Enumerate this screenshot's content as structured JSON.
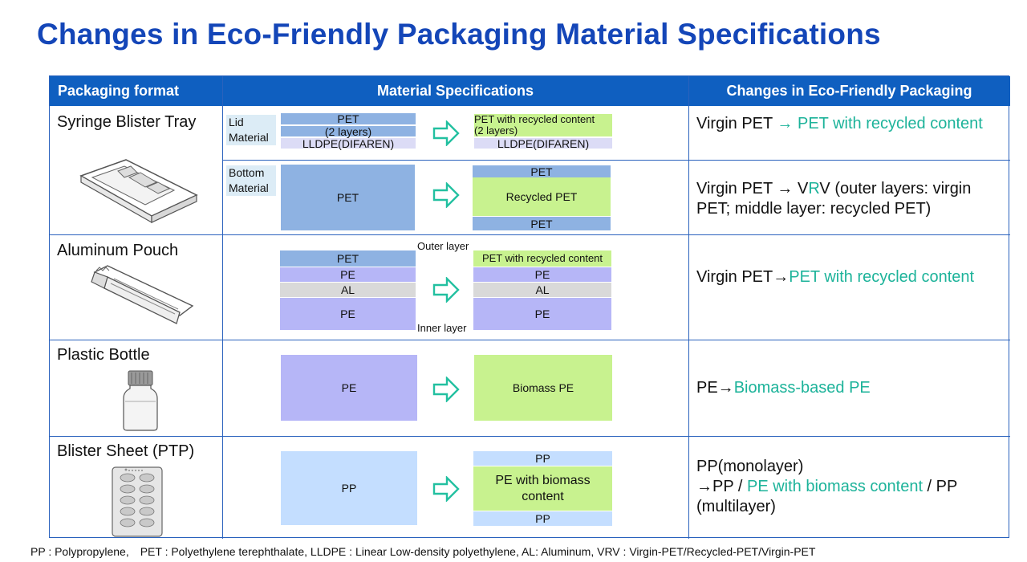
{
  "title": "Changes in Eco-Friendly Packaging Material Specifications",
  "headers": {
    "format": "Packaging format",
    "material": "Material Specifications",
    "changes": "Changes in Eco-Friendly Packaging"
  },
  "rows": {
    "syringe": {
      "format": "Syringe Blister Tray",
      "lid_label_1": "Lid",
      "lid_label_2": "Material",
      "lid_before": {
        "pet": "PET",
        "pet_sub": "(2 layers)",
        "lldpe": "LLDPE(DIFAREN)"
      },
      "lid_after": {
        "rec": "PET with recycled content",
        "rec_sub": "(2 layers)",
        "lldpe": "LLDPE(DIFAREN)"
      },
      "lid_change": {
        "before": "Virgin PET ",
        "arrow": "→ ",
        "after": "PET with recycled content"
      },
      "bottom_label_1": "Bottom",
      "bottom_label_2": "Material",
      "bottom_before": "PET",
      "bottom_after": {
        "top": "PET",
        "middle": "Recycled PET",
        "bottom": "PET"
      },
      "bottom_change": {
        "a": "Virgin PET → V",
        "b": "R",
        "c": "V (outer layers: virgin PET; middle layer: recycled PET)"
      }
    },
    "pouch": {
      "format": "Aluminum Pouch",
      "outer_label": "Outer layer",
      "inner_label": "Inner layer",
      "before": [
        "PET",
        "PE",
        "AL",
        "PE"
      ],
      "after": [
        "PET with recycled content",
        "PE",
        "AL",
        "PE"
      ],
      "change": {
        "before": "Virgin PET→",
        "after": "PET with recycled content"
      }
    },
    "bottle": {
      "format": "Plastic Bottle",
      "before": "PE",
      "after": "Biomass PE",
      "change": {
        "before": "PE→",
        "after": "Biomass-based PE"
      }
    },
    "ptp": {
      "format": "Blister Sheet (PTP)",
      "before": "PP",
      "after": {
        "top": "PP",
        "middle_1": "PE with biomass",
        "middle_2": "content",
        "bottom": "PP"
      },
      "change": {
        "l1": "PP(monolayer)",
        "l2a": "→PP / ",
        "l2b": "PE with biomass content",
        "l2c": " / PP",
        "l3": "(multilayer)"
      }
    }
  },
  "footer": "PP : Polypropylene,　PET : Polyethylene terephthalate,  LLDPE : Linear Low-density polyethylene,  AL: Aluminum,  VRV : Virgin-PET/Recycled-PET/Virgin-PET",
  "colors": {
    "title": "#1446b8",
    "header_bg": "#0f5fc0",
    "accent_green": "#1db39a",
    "pet": "#8eb2e2",
    "recycled": "#c8f28f",
    "pe": "#b6b6f7",
    "al": "#d9d9d9",
    "pp": "#c4deff"
  },
  "icons": [
    "syringe-tray-icon",
    "pouch-icon",
    "bottle-icon",
    "blister-sheet-icon",
    "arrow-right-icon"
  ]
}
